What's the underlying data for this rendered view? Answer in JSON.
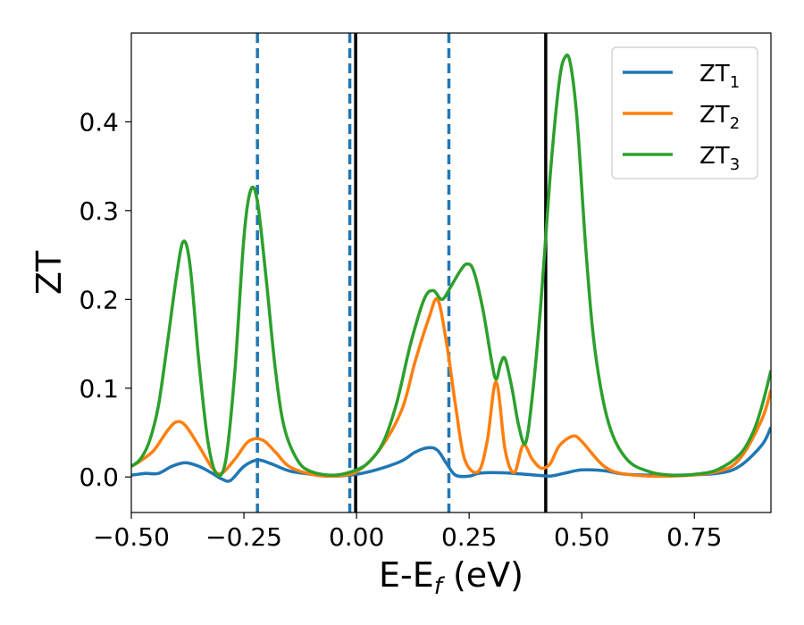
{
  "chart_data": {
    "type": "line",
    "xlabel": "E-E",
    "xlabel_sub": "f",
    "xlabel_unit": " (eV)",
    "ylabel": "ZT",
    "xlim": [
      -0.5,
      0.92
    ],
    "ylim": [
      -0.04,
      0.5
    ],
    "xticks": [
      -0.5,
      -0.25,
      0.0,
      0.25,
      0.5,
      0.75
    ],
    "xtick_labels": [
      "−0.50",
      "−0.25",
      "0.00",
      "0.25",
      "0.50",
      "0.75"
    ],
    "yticks": [
      0.0,
      0.1,
      0.2,
      0.3,
      0.4
    ],
    "ytick_labels": [
      "0.0",
      "0.1",
      "0.2",
      "0.3",
      "0.4"
    ],
    "grid": false,
    "legend_position": "top-right",
    "vlines_dashed": {
      "color": "#1f77b4",
      "x": [
        -0.22,
        -0.015,
        0.205
      ]
    },
    "vlines_solid": {
      "color": "#000000",
      "x": [
        -0.002,
        0.42
      ]
    },
    "series": [
      {
        "name": "ZT",
        "name_sub": "1",
        "color": "#1f77b4",
        "x": [
          -0.5,
          -0.47,
          -0.44,
          -0.41,
          -0.38,
          -0.35,
          -0.32,
          -0.3,
          -0.28,
          -0.25,
          -0.22,
          -0.19,
          -0.15,
          -0.1,
          -0.05,
          0.0,
          0.05,
          0.1,
          0.13,
          0.16,
          0.18,
          0.2,
          0.22,
          0.25,
          0.27,
          0.3,
          0.35,
          0.4,
          0.43,
          0.46,
          0.5,
          0.55,
          0.6,
          0.7,
          0.8,
          0.85,
          0.9,
          0.92
        ],
        "y": [
          0.002,
          0.004,
          0.004,
          0.012,
          0.016,
          0.012,
          0.004,
          -0.002,
          -0.004,
          0.012,
          0.019,
          0.015,
          0.007,
          0.003,
          0.001,
          0.003,
          0.009,
          0.018,
          0.028,
          0.033,
          0.03,
          0.015,
          0.002,
          0.001,
          0.004,
          0.005,
          0.004,
          0.002,
          0.001,
          0.004,
          0.008,
          0.007,
          0.003,
          0.002,
          0.004,
          0.012,
          0.036,
          0.056
        ]
      },
      {
        "name": "ZT",
        "name_sub": "2",
        "color": "#ff7f0e",
        "x": [
          -0.5,
          -0.48,
          -0.45,
          -0.42,
          -0.4,
          -0.38,
          -0.35,
          -0.32,
          -0.3,
          -0.27,
          -0.24,
          -0.21,
          -0.18,
          -0.15,
          -0.1,
          -0.05,
          0.0,
          0.05,
          0.1,
          0.13,
          0.16,
          0.18,
          0.2,
          0.22,
          0.24,
          0.27,
          0.29,
          0.31,
          0.33,
          0.35,
          0.37,
          0.39,
          0.41,
          0.43,
          0.45,
          0.48,
          0.5,
          0.55,
          0.6,
          0.7,
          0.8,
          0.85,
          0.9,
          0.92
        ],
        "y": [
          0.012,
          0.018,
          0.03,
          0.052,
          0.062,
          0.058,
          0.035,
          0.01,
          0.004,
          0.02,
          0.04,
          0.042,
          0.028,
          0.012,
          0.003,
          0.001,
          0.006,
          0.03,
          0.075,
          0.13,
          0.178,
          0.2,
          0.15,
          0.08,
          0.02,
          0.006,
          0.04,
          0.107,
          0.03,
          0.005,
          0.036,
          0.02,
          0.01,
          0.015,
          0.035,
          0.046,
          0.04,
          0.012,
          0.003,
          0.001,
          0.006,
          0.02,
          0.065,
          0.098
        ]
      },
      {
        "name": "ZT",
        "name_sub": "3",
        "color": "#2ca02c",
        "x": [
          -0.5,
          -0.48,
          -0.46,
          -0.44,
          -0.42,
          -0.4,
          -0.385,
          -0.37,
          -0.35,
          -0.33,
          -0.31,
          -0.29,
          -0.27,
          -0.25,
          -0.235,
          -0.22,
          -0.2,
          -0.18,
          -0.16,
          -0.13,
          -0.1,
          -0.05,
          0.0,
          0.03,
          0.06,
          0.09,
          0.12,
          0.15,
          0.17,
          0.19,
          0.21,
          0.23,
          0.245,
          0.26,
          0.28,
          0.3,
          0.31,
          0.32,
          0.33,
          0.345,
          0.36,
          0.375,
          0.39,
          0.41,
          0.43,
          0.45,
          0.463,
          0.475,
          0.49,
          0.51,
          0.53,
          0.56,
          0.6,
          0.65,
          0.7,
          0.75,
          0.8,
          0.85,
          0.88,
          0.9,
          0.92
        ],
        "y": [
          0.012,
          0.02,
          0.04,
          0.08,
          0.15,
          0.225,
          0.265,
          0.24,
          0.13,
          0.04,
          0.003,
          0.02,
          0.12,
          0.27,
          0.323,
          0.31,
          0.22,
          0.12,
          0.055,
          0.018,
          0.006,
          0.002,
          0.008,
          0.018,
          0.04,
          0.085,
          0.15,
          0.2,
          0.21,
          0.2,
          0.215,
          0.232,
          0.24,
          0.232,
          0.19,
          0.13,
          0.11,
          0.128,
          0.133,
          0.1,
          0.058,
          0.038,
          0.09,
          0.2,
          0.34,
          0.445,
          0.473,
          0.465,
          0.4,
          0.25,
          0.14,
          0.06,
          0.02,
          0.006,
          0.002,
          0.003,
          0.008,
          0.025,
          0.05,
          0.08,
          0.12
        ]
      }
    ]
  }
}
